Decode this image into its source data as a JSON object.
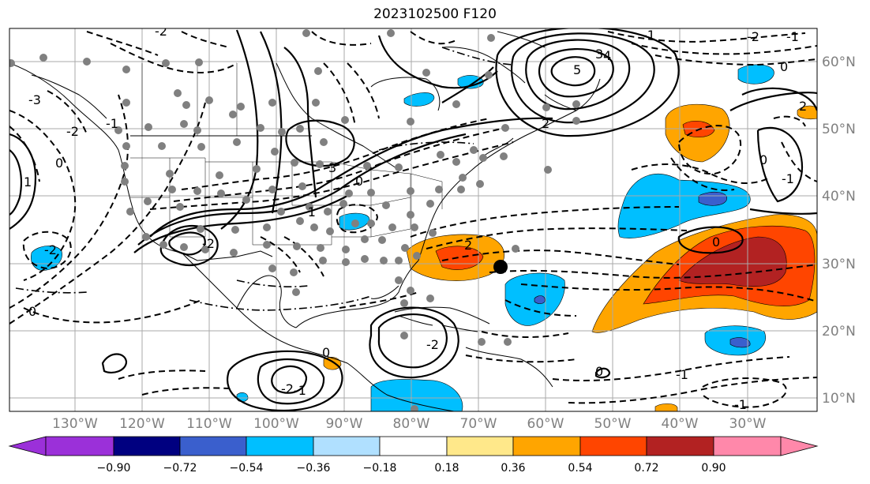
{
  "title": "2023102500 F120",
  "lat_labels": [
    "60°N",
    "50°N",
    "40°N",
    "30°N",
    "20°N",
    "10°N"
  ],
  "lon_labels": [
    "130°W",
    "120°W",
    "110°W",
    "100°W",
    "90°W",
    "80°W",
    "70°W",
    "60°W",
    "50°W",
    "40°W",
    "30°W"
  ],
  "colorbar": {
    "ticks": [
      "−0.90",
      "−0.72",
      "−0.54",
      "−0.36",
      "−0.18",
      "0.18",
      "0.36",
      "0.54",
      "0.72",
      "0.90"
    ],
    "colors": [
      "#9b30d9",
      "#000080",
      "#3a5fcd",
      "#00bfff",
      "#b0e0ff",
      "#ffffff",
      "#ffe88a",
      "#ffa500",
      "#ff4500",
      "#b22222",
      "#ff88aa"
    ]
  },
  "contour_labels": [
    "-2",
    "3",
    "4",
    "5",
    "-1",
    "-3",
    "-2",
    "0",
    "1",
    "-2",
    "-2",
    "2",
    "-1",
    "0",
    "-2",
    "0",
    "-2",
    "-1",
    "2",
    "3",
    "-2",
    "-1",
    "0",
    "2",
    "0",
    "-1",
    "0",
    "-1",
    "-1",
    "0",
    "-1",
    "0"
  ],
  "shading_colors": {
    "light_blue": "#00bfff",
    "mid_blue": "#3a5fcd",
    "orange": "#ffa500",
    "red_orange": "#ff4500",
    "dark_red": "#b22222"
  },
  "storm_marker_color": "#000000",
  "station_marker_color": "#808080"
}
